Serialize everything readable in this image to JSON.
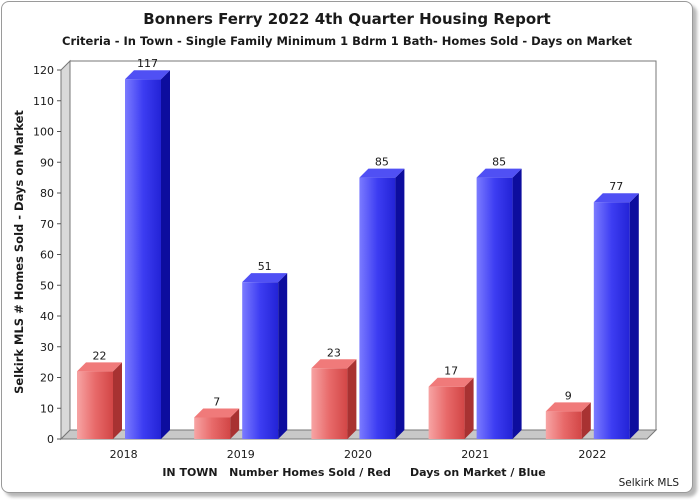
{
  "chart_data": {
    "type": "bar",
    "title": "Bonners Ferry 2022 4th Quarter Housing Report",
    "subtitle": "Criteria - In Town - Single Family Minimum 1 Bdrm 1 Bath- Homes Sold - Days on Market",
    "ylabel": "Selkirk MLS # Homes Sold - Days on Market",
    "xlabel": "IN TOWN   Number Homes Sold / Red     Days on Market / Blue",
    "credit": "Selkirk MLS",
    "categories": [
      "2018",
      "2019",
      "2020",
      "2021",
      "2022"
    ],
    "series": [
      {
        "values": [
          22,
          7,
          23,
          17,
          9
        ],
        "color": "#e85c5c"
      },
      {
        "values": [
          117,
          51,
          85,
          85,
          77
        ],
        "color": "#3a3af0"
      }
    ],
    "ylim": [
      0,
      120
    ],
    "yticks": [
      0,
      10,
      20,
      30,
      40,
      50,
      60,
      70,
      80,
      90,
      100,
      110,
      120
    ],
    "grid": false,
    "legend": "none",
    "data_labels": true
  }
}
